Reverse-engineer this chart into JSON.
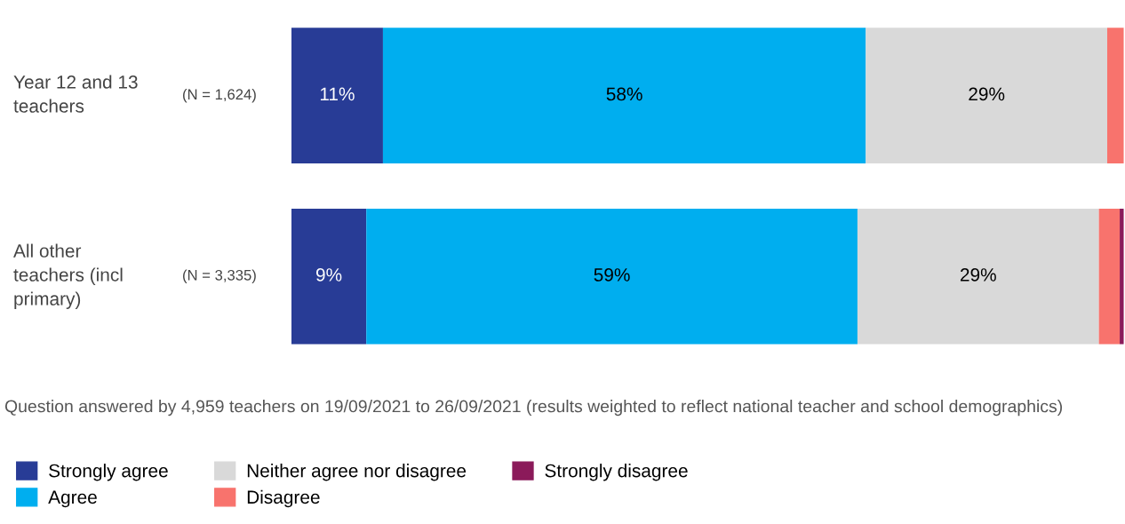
{
  "chart_data": {
    "type": "bar",
    "orientation": "horizontal",
    "stacked": true,
    "categories": [
      "Year 12 and 13 teachers",
      "All other teachers (incl primary)"
    ],
    "series": [
      {
        "name": "Strongly agree",
        "color": "#283c96",
        "values": [
          11,
          9
        ],
        "value_labels": [
          "11%",
          "9%"
        ]
      },
      {
        "name": "Agree",
        "color": "#00aeef",
        "values": [
          58,
          59
        ],
        "value_labels": [
          "58%",
          "59%"
        ]
      },
      {
        "name": "Neither agree nor disagree",
        "color": "#d9d9d9",
        "values": [
          29,
          29
        ],
        "value_labels": [
          "29%",
          "29%"
        ]
      },
      {
        "name": "Disagree",
        "color": "#f8736d",
        "values": [
          2,
          2.5
        ],
        "value_labels": [
          null,
          null
        ]
      },
      {
        "name": "Strongly disagree",
        "color": "#8b1a5a",
        "values": [
          0,
          0.5
        ],
        "value_labels": [
          null,
          null
        ]
      }
    ],
    "xlim": [
      0,
      100
    ],
    "tick_labels": "y",
    "legend": "bottom",
    "annotations": [
      "(N = 1,624)",
      "(N = 3,335)",
      "Question answered by 4,959 teachers on 19/09/2021 to 26/09/2021 (results weighted to reflect national teacher and school demographics)"
    ]
  }
}
